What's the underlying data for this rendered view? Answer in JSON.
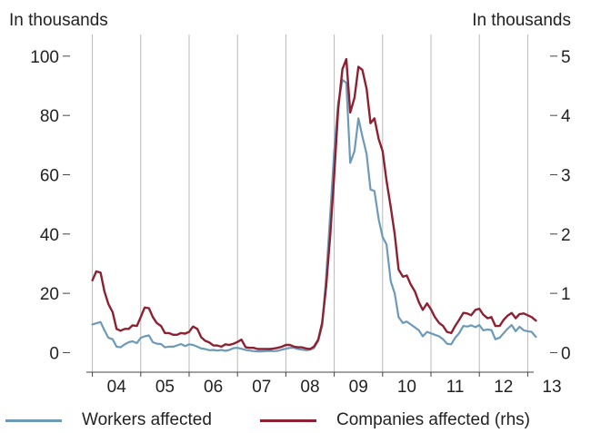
{
  "chart_data": {
    "type": "line",
    "left_axis_label": "In thousands",
    "right_axis_label": "In thousands",
    "x_tick_labels": [
      "04",
      "05",
      "06",
      "07",
      "08",
      "09",
      "10",
      "11",
      "12",
      "13"
    ],
    "x_range": [
      2003.5,
      2013.5
    ],
    "y_left_ticks": [
      0,
      20,
      40,
      60,
      80,
      100
    ],
    "y_left_range": [
      -6.6,
      107.3
    ],
    "y_right_ticks": [
      0,
      1,
      2,
      3,
      4,
      5
    ],
    "y_right_range": [
      -0.33,
      5.365
    ],
    "grid": "vertical",
    "legend_position": "bottom",
    "series": [
      {
        "name": "Workers affected",
        "axis": "left",
        "color": "#6d9ab8",
        "points": [
          [
            2004.0,
            9.5
          ],
          [
            2004.1,
            10
          ],
          [
            2004.17,
            10.3
          ],
          [
            2004.25,
            7.5
          ],
          [
            2004.33,
            5
          ],
          [
            2004.42,
            4.5
          ],
          [
            2004.5,
            2
          ],
          [
            2004.58,
            1.8
          ],
          [
            2004.67,
            2.8
          ],
          [
            2004.75,
            3.5
          ],
          [
            2004.83,
            3.8
          ],
          [
            2004.92,
            3.2
          ],
          [
            2005.0,
            5
          ],
          [
            2005.08,
            5.5
          ],
          [
            2005.17,
            5.8
          ],
          [
            2005.25,
            3.5
          ],
          [
            2005.33,
            3
          ],
          [
            2005.42,
            2.9
          ],
          [
            2005.5,
            1.8
          ],
          [
            2005.58,
            2
          ],
          [
            2005.67,
            2
          ],
          [
            2005.75,
            2.4
          ],
          [
            2005.83,
            2.9
          ],
          [
            2005.92,
            2.2
          ],
          [
            2006.0,
            2.8
          ],
          [
            2006.08,
            2.6
          ],
          [
            2006.17,
            2
          ],
          [
            2006.25,
            1.4
          ],
          [
            2006.33,
            1.2
          ],
          [
            2006.42,
            0.8
          ],
          [
            2006.5,
            0.9
          ],
          [
            2006.58,
            0.7
          ],
          [
            2006.67,
            0.9
          ],
          [
            2006.75,
            0.6
          ],
          [
            2006.83,
            0.9
          ],
          [
            2006.92,
            1.5
          ],
          [
            2007.0,
            1.6
          ],
          [
            2007.08,
            1.3
          ],
          [
            2007.17,
            0.9
          ],
          [
            2007.25,
            0.7
          ],
          [
            2007.33,
            0.5
          ],
          [
            2007.42,
            0.4
          ],
          [
            2007.5,
            0.4
          ],
          [
            2007.58,
            0.5
          ],
          [
            2007.67,
            0.6
          ],
          [
            2007.75,
            0.5
          ],
          [
            2007.83,
            0.6
          ],
          [
            2007.92,
            1
          ],
          [
            2008.0,
            1.3
          ],
          [
            2008.08,
            1.6
          ],
          [
            2008.17,
            1.6
          ],
          [
            2008.25,
            1.2
          ],
          [
            2008.33,
            1
          ],
          [
            2008.42,
            0.8
          ],
          [
            2008.5,
            1
          ],
          [
            2008.58,
            1.5
          ],
          [
            2008.67,
            4
          ],
          [
            2008.75,
            9
          ],
          [
            2008.83,
            25
          ],
          [
            2008.92,
            47
          ],
          [
            2009.0,
            68
          ],
          [
            2009.08,
            84
          ],
          [
            2009.17,
            92
          ],
          [
            2009.25,
            91
          ],
          [
            2009.33,
            64
          ],
          [
            2009.42,
            68
          ],
          [
            2009.5,
            79
          ],
          [
            2009.58,
            73
          ],
          [
            2009.67,
            67
          ],
          [
            2009.75,
            55
          ],
          [
            2009.83,
            54.5
          ],
          [
            2009.92,
            45
          ],
          [
            2010.0,
            39
          ],
          [
            2010.08,
            36.5
          ],
          [
            2010.17,
            24
          ],
          [
            2010.25,
            20
          ],
          [
            2010.33,
            12
          ],
          [
            2010.42,
            10
          ],
          [
            2010.5,
            10.5
          ],
          [
            2010.58,
            9.5
          ],
          [
            2010.67,
            8.5
          ],
          [
            2010.75,
            7.5
          ],
          [
            2010.83,
            5.5
          ],
          [
            2010.92,
            7
          ],
          [
            2011.0,
            6.5
          ],
          [
            2011.08,
            6
          ],
          [
            2011.17,
            5.5
          ],
          [
            2011.25,
            4.5
          ],
          [
            2011.33,
            3
          ],
          [
            2011.42,
            2.8
          ],
          [
            2011.5,
            5
          ],
          [
            2011.58,
            6.5
          ],
          [
            2011.67,
            9
          ],
          [
            2011.75,
            8.8
          ],
          [
            2011.83,
            9.2
          ],
          [
            2011.92,
            8.6
          ],
          [
            2012.0,
            9.3
          ],
          [
            2012.08,
            7.5
          ],
          [
            2012.17,
            7.8
          ],
          [
            2012.25,
            7.6
          ],
          [
            2012.33,
            4.5
          ],
          [
            2012.42,
            5
          ],
          [
            2012.5,
            6.5
          ],
          [
            2012.58,
            8
          ],
          [
            2012.67,
            9.3
          ],
          [
            2012.75,
            7.2
          ],
          [
            2012.83,
            8.7
          ],
          [
            2012.92,
            7.5
          ],
          [
            2013.0,
            7.2
          ],
          [
            2013.08,
            7
          ],
          [
            2013.17,
            5.3
          ]
        ]
      },
      {
        "name": "Companies affected (rhs)",
        "axis": "right",
        "color": "#8e2131",
        "points": [
          [
            2004.0,
            1.22
          ],
          [
            2004.08,
            1.37
          ],
          [
            2004.17,
            1.35
          ],
          [
            2004.25,
            1.03
          ],
          [
            2004.33,
            0.82
          ],
          [
            2004.42,
            0.68
          ],
          [
            2004.5,
            0.4
          ],
          [
            2004.58,
            0.37
          ],
          [
            2004.67,
            0.4
          ],
          [
            2004.75,
            0.4
          ],
          [
            2004.83,
            0.46
          ],
          [
            2004.92,
            0.45
          ],
          [
            2005.0,
            0.6
          ],
          [
            2005.08,
            0.76
          ],
          [
            2005.17,
            0.75
          ],
          [
            2005.25,
            0.6
          ],
          [
            2005.33,
            0.5
          ],
          [
            2005.42,
            0.45
          ],
          [
            2005.5,
            0.33
          ],
          [
            2005.58,
            0.33
          ],
          [
            2005.67,
            0.3
          ],
          [
            2005.75,
            0.3
          ],
          [
            2005.83,
            0.33
          ],
          [
            2005.92,
            0.32
          ],
          [
            2006.0,
            0.35
          ],
          [
            2006.08,
            0.44
          ],
          [
            2006.17,
            0.4
          ],
          [
            2006.25,
            0.26
          ],
          [
            2006.33,
            0.2
          ],
          [
            2006.42,
            0.17
          ],
          [
            2006.5,
            0.12
          ],
          [
            2006.58,
            0.12
          ],
          [
            2006.67,
            0.1
          ],
          [
            2006.75,
            0.14
          ],
          [
            2006.83,
            0.13
          ],
          [
            2006.92,
            0.15
          ],
          [
            2007.0,
            0.18
          ],
          [
            2007.08,
            0.22
          ],
          [
            2007.17,
            0.09
          ],
          [
            2007.25,
            0.08
          ],
          [
            2007.33,
            0.08
          ],
          [
            2007.42,
            0.06
          ],
          [
            2007.5,
            0.06
          ],
          [
            2007.58,
            0.06
          ],
          [
            2007.67,
            0.06
          ],
          [
            2007.75,
            0.07
          ],
          [
            2007.83,
            0.08
          ],
          [
            2007.92,
            0.1
          ],
          [
            2008.0,
            0.13
          ],
          [
            2008.08,
            0.13
          ],
          [
            2008.17,
            0.1
          ],
          [
            2008.25,
            0.09
          ],
          [
            2008.33,
            0.09
          ],
          [
            2008.42,
            0.07
          ],
          [
            2008.5,
            0.06
          ],
          [
            2008.58,
            0.1
          ],
          [
            2008.67,
            0.22
          ],
          [
            2008.75,
            0.5
          ],
          [
            2008.83,
            1.1
          ],
          [
            2008.92,
            2.0
          ],
          [
            2009.0,
            3.0
          ],
          [
            2009.08,
            4.1
          ],
          [
            2009.17,
            4.78
          ],
          [
            2009.25,
            4.95
          ],
          [
            2009.33,
            4.05
          ],
          [
            2009.42,
            4.3
          ],
          [
            2009.5,
            4.82
          ],
          [
            2009.58,
            4.77
          ],
          [
            2009.67,
            4.45
          ],
          [
            2009.75,
            3.87
          ],
          [
            2009.83,
            3.95
          ],
          [
            2009.92,
            3.6
          ],
          [
            2010.0,
            3.4
          ],
          [
            2010.08,
            2.9
          ],
          [
            2010.17,
            2.45
          ],
          [
            2010.25,
            2.0
          ],
          [
            2010.33,
            1.4
          ],
          [
            2010.42,
            1.28
          ],
          [
            2010.5,
            1.3
          ],
          [
            2010.58,
            1.15
          ],
          [
            2010.67,
            1.03
          ],
          [
            2010.75,
            0.85
          ],
          [
            2010.83,
            0.72
          ],
          [
            2010.92,
            0.83
          ],
          [
            2011.0,
            0.73
          ],
          [
            2011.08,
            0.6
          ],
          [
            2011.17,
            0.5
          ],
          [
            2011.25,
            0.45
          ],
          [
            2011.33,
            0.35
          ],
          [
            2011.42,
            0.33
          ],
          [
            2011.5,
            0.45
          ],
          [
            2011.58,
            0.55
          ],
          [
            2011.67,
            0.67
          ],
          [
            2011.75,
            0.66
          ],
          [
            2011.83,
            0.63
          ],
          [
            2011.92,
            0.72
          ],
          [
            2012.0,
            0.74
          ],
          [
            2012.08,
            0.64
          ],
          [
            2012.17,
            0.58
          ],
          [
            2012.25,
            0.6
          ],
          [
            2012.33,
            0.45
          ],
          [
            2012.42,
            0.45
          ],
          [
            2012.5,
            0.55
          ],
          [
            2012.58,
            0.62
          ],
          [
            2012.67,
            0.67
          ],
          [
            2012.75,
            0.58
          ],
          [
            2012.83,
            0.65
          ],
          [
            2012.92,
            0.66
          ],
          [
            2013.0,
            0.63
          ],
          [
            2013.08,
            0.6
          ],
          [
            2013.17,
            0.54
          ]
        ]
      }
    ]
  }
}
